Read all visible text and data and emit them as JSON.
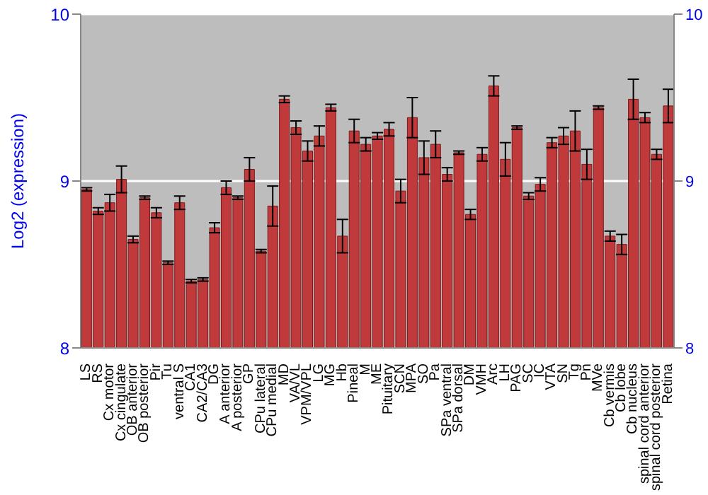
{
  "chart_data": {
    "type": "bar",
    "ylabel": "Log2 (expression)",
    "categories": [
      "LS",
      "RS",
      "Cx motor",
      "Cx cingulate",
      "OB anterior",
      "OB posterior",
      "Pir",
      "Tu",
      "ventral S",
      "CA1",
      "CA2/CA3",
      "DG",
      "A anterior",
      "A posterior",
      "GP",
      "CPu lateral",
      "CPu medial",
      "MD",
      "VA/VL",
      "VPM/VPL",
      "LG",
      "MG",
      "Hb",
      "Pineal",
      "M",
      "ME",
      "Pituitary",
      "SCN",
      "MPA",
      "SO",
      "Pa",
      "SPa ventral",
      "SPa dorsal",
      "DM",
      "VMH",
      "Arc",
      "LH",
      "PAG",
      "SC",
      "IC",
      "VTA",
      "SN",
      "Tg",
      "Pn",
      "MVe",
      "Cb vermis",
      "Cb lobe",
      "Cb nucleus",
      "spinal cord anterior",
      "spinal cord posterior",
      "Retina"
    ],
    "values": [
      8.95,
      8.82,
      8.87,
      9.01,
      8.65,
      8.9,
      8.81,
      8.51,
      8.87,
      8.4,
      8.41,
      8.72,
      8.96,
      8.9,
      9.07,
      8.58,
      8.85,
      9.49,
      9.32,
      9.18,
      9.27,
      9.44,
      8.67,
      9.3,
      9.22,
      9.27,
      9.31,
      8.94,
      9.38,
      9.14,
      9.22,
      9.04,
      9.17,
      8.8,
      9.16,
      9.57,
      9.13,
      9.32,
      8.91,
      8.98,
      9.23,
      9.27,
      9.3,
      9.1,
      9.44,
      8.67,
      8.62,
      9.49,
      9.38,
      9.16,
      9.45
    ],
    "errors": [
      0.01,
      0.02,
      0.05,
      0.08,
      0.02,
      0.01,
      0.03,
      0.01,
      0.04,
      0.01,
      0.01,
      0.03,
      0.04,
      0.01,
      0.07,
      0.01,
      0.12,
      0.02,
      0.04,
      0.06,
      0.06,
      0.02,
      0.1,
      0.07,
      0.04,
      0.02,
      0.04,
      0.07,
      0.12,
      0.1,
      0.08,
      0.04,
      0.01,
      0.03,
      0.04,
      0.06,
      0.1,
      0.01,
      0.02,
      0.04,
      0.03,
      0.05,
      0.12,
      0.09,
      0.01,
      0.03,
      0.06,
      0.12,
      0.03,
      0.03,
      0.1
    ],
    "color": "#c0393b",
    "ylim": [
      8,
      10
    ],
    "yticks": [
      8,
      9,
      10
    ],
    "y2lim": [
      8,
      10
    ],
    "y2ticks": [
      8,
      9,
      10
    ],
    "grid": "y"
  }
}
